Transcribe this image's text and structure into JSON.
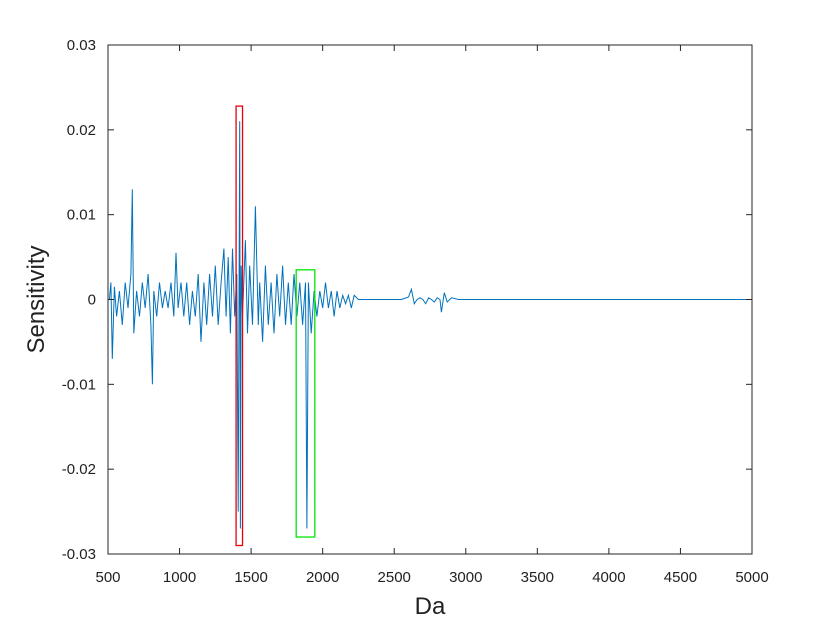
{
  "chart_data": {
    "type": "line",
    "title": "",
    "xlabel": "Da",
    "ylabel": "Sensitivity",
    "xlim": [
      500,
      5000
    ],
    "ylim": [
      -0.03,
      0.03
    ],
    "grid": false,
    "legend": "none",
    "series_color": "#0072bd",
    "x_ticks": [
      500,
      1000,
      1500,
      2000,
      2500,
      3000,
      3500,
      4000,
      4500,
      5000
    ],
    "x_tick_labels": [
      "500",
      "1000",
      "1500",
      "2000",
      "2500",
      "3000",
      "3500",
      "4000",
      "4500",
      "5000"
    ],
    "y_ticks": [
      -0.03,
      -0.02,
      -0.01,
      0,
      0.01,
      0.02,
      0.03
    ],
    "y_tick_labels": [
      "-0.03",
      "-0.02",
      "-0.01",
      "0",
      "0.01",
      "0.02",
      "0.03"
    ],
    "series": [
      {
        "x": [
          510,
          520,
          530,
          545,
          560,
          580,
          600,
          620,
          640,
          660,
          670,
          680,
          700,
          720,
          740,
          760,
          780,
          800,
          810,
          820,
          840,
          860,
          880,
          900,
          920,
          940,
          960,
          975,
          990,
          1010,
          1030,
          1050,
          1070,
          1090,
          1110,
          1130,
          1150,
          1170,
          1190,
          1210,
          1230,
          1250,
          1270,
          1290,
          1310,
          1325,
          1340,
          1355,
          1370,
          1385,
          1400,
          1410,
          1420,
          1425,
          1430,
          1440,
          1460,
          1475,
          1490,
          1510,
          1530,
          1550,
          1560,
          1580,
          1600,
          1620,
          1640,
          1660,
          1680,
          1700,
          1720,
          1740,
          1760,
          1780,
          1800,
          1820,
          1840,
          1860,
          1880,
          1890,
          1900,
          1920,
          1940,
          1960,
          1980,
          2000,
          2020,
          2040,
          2060,
          2080,
          2100,
          2120,
          2140,
          2160,
          2180,
          2200,
          2220,
          2250,
          2280,
          2300,
          2350,
          2400,
          2450,
          2500,
          2550,
          2600,
          2620,
          2640,
          2660,
          2680,
          2700,
          2720,
          2740,
          2760,
          2780,
          2800,
          2820,
          2830,
          2850,
          2870,
          2900,
          2950,
          3000,
          3500,
          4000,
          4500,
          5000
        ],
        "y": [
          0,
          0.002,
          -0.007,
          0.0015,
          -0.002,
          0.001,
          -0.003,
          0.002,
          -0.001,
          0.003,
          0.013,
          -0.004,
          0.001,
          -0.002,
          0.002,
          -0.001,
          0.003,
          -0.003,
          -0.01,
          0.001,
          -0.002,
          0.002,
          -0.001,
          0.001,
          -0.001,
          0.002,
          -0.002,
          0.0055,
          -0.001,
          0.002,
          -0.002,
          0.002,
          -0.003,
          0.001,
          -0.002,
          0.003,
          -0.005,
          0.002,
          -0.003,
          0.003,
          -0.002,
          0.004,
          -0.003,
          0.002,
          0.006,
          -0.002,
          0.005,
          -0.004,
          0.006,
          -0.002,
          0.003,
          -0.025,
          0.021,
          -0.027,
          0.004,
          -0.002,
          0.007,
          -0.004,
          0.004,
          -0.003,
          0.011,
          -0.003,
          0.002,
          -0.005,
          0.004,
          -0.003,
          0.002,
          -0.004,
          0.003,
          -0.002,
          0.004,
          -0.003,
          0.002,
          -0.003,
          0.003,
          -0.002,
          0.002,
          -0.003,
          0.002,
          -0.027,
          0.002,
          -0.004,
          0.001,
          -0.002,
          0.001,
          -0.001,
          0.002,
          -0.001,
          0.001,
          -0.002,
          0.001,
          -0.001,
          0.0005,
          -0.0005,
          0.0005,
          -0.001,
          0.0005,
          0,
          0,
          0,
          0,
          0,
          0,
          0,
          0,
          0.0003,
          0.0012,
          -0.0005,
          0,
          0.0002,
          0,
          -0.0005,
          0.0002,
          0,
          -0.0003,
          0.0002,
          0,
          -0.0015,
          0.0008,
          -0.0003,
          0.0002,
          0,
          0,
          0,
          0,
          0,
          0
        ]
      }
    ],
    "highlight_boxes": [
      {
        "color": "#e8000b",
        "x_range": [
          1395,
          1440
        ],
        "y_range": [
          -0.029,
          0.0228
        ]
      },
      {
        "color": "#00e600",
        "x_range": [
          1815,
          1945
        ],
        "y_range": [
          -0.028,
          0.0035
        ]
      }
    ]
  }
}
